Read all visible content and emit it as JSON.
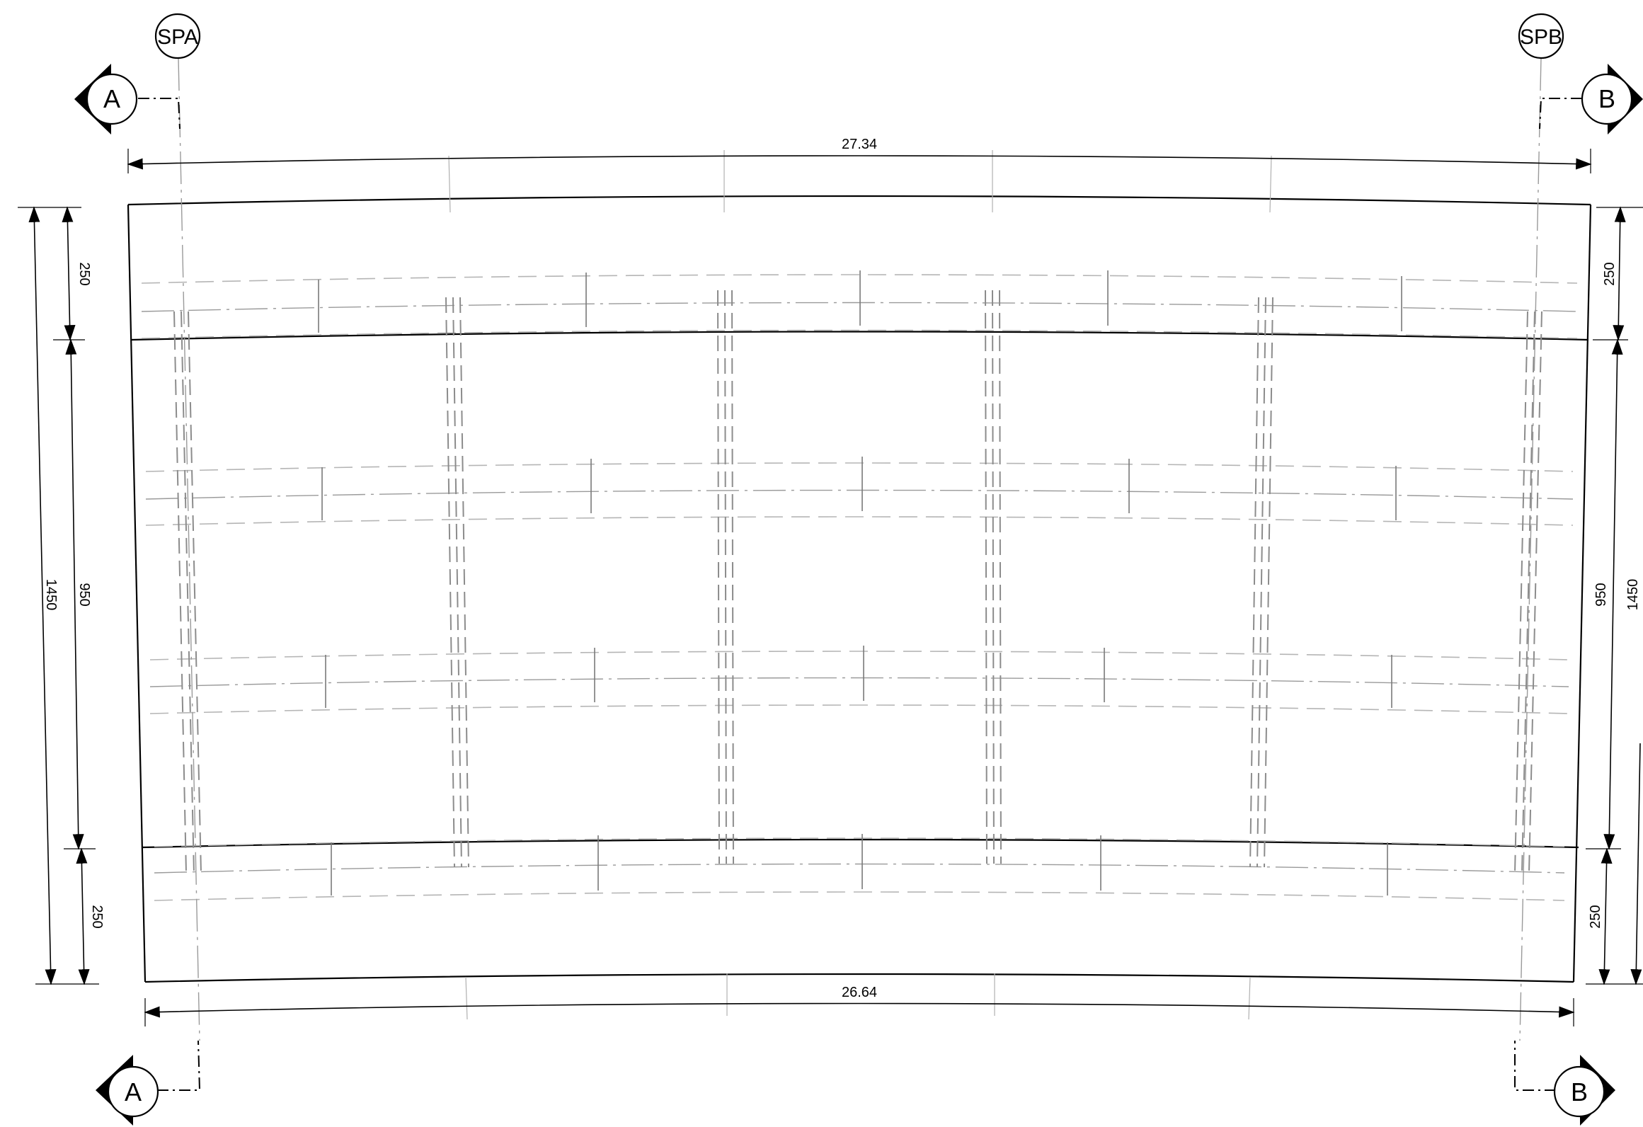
{
  "support_markers": {
    "left": "SPA",
    "right": "SPB"
  },
  "section_markers": {
    "top_left": "A",
    "top_right": "B",
    "bottom_left": "A",
    "bottom_right": "B"
  },
  "dimensions": {
    "top_length": "27.34",
    "bottom_length": "26.64",
    "left_overall": "1450",
    "left_top_cantilever": "250",
    "left_middle": "950",
    "left_bottom_cantilever": "250",
    "right_overall": "1450",
    "right_top_cantilever": "250",
    "right_middle": "950",
    "right_bottom_cantilever": "250"
  }
}
